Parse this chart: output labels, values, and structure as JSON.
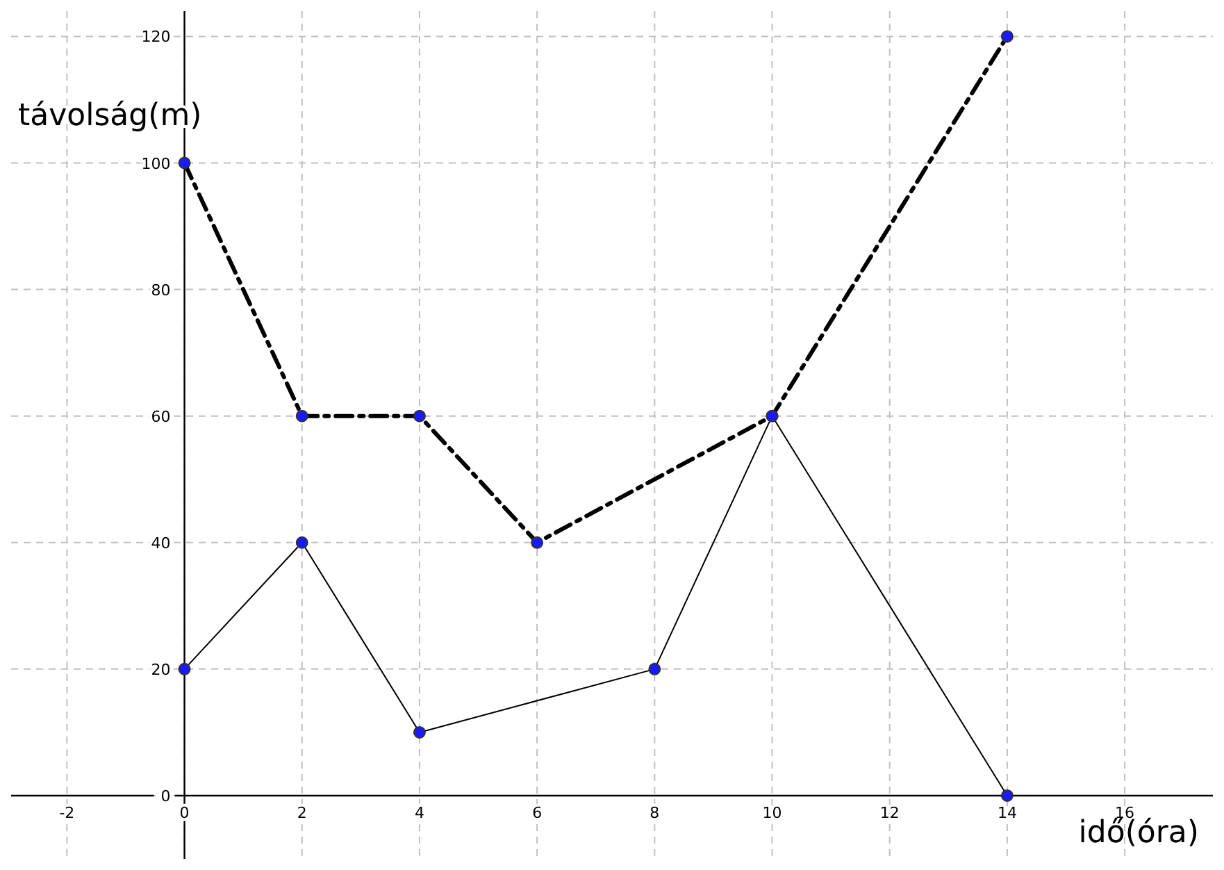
{
  "chart_data": {
    "type": "line",
    "xlabel": "idő(óra)",
    "ylabel": "távolság(m)",
    "xlim": [
      -2.95,
      17.5
    ],
    "ylim": [
      -10,
      124
    ],
    "xticks": [
      -2,
      0,
      2,
      4,
      6,
      8,
      10,
      12,
      14,
      16
    ],
    "yticks": [
      0,
      20,
      40,
      60,
      80,
      100,
      120
    ],
    "grid": true,
    "marker": "circle",
    "series": [
      {
        "color": "#000000",
        "line_style": "dashed",
        "x": [
          0,
          2,
          4,
          6,
          10,
          14
        ],
        "values": [
          100,
          60,
          60,
          40,
          60,
          120
        ]
      },
      {
        "color": "#000000",
        "line_style": "solid",
        "x": [
          0,
          2,
          4,
          8,
          10,
          14
        ],
        "values": [
          20,
          40,
          10,
          20,
          60,
          0
        ]
      }
    ]
  }
}
